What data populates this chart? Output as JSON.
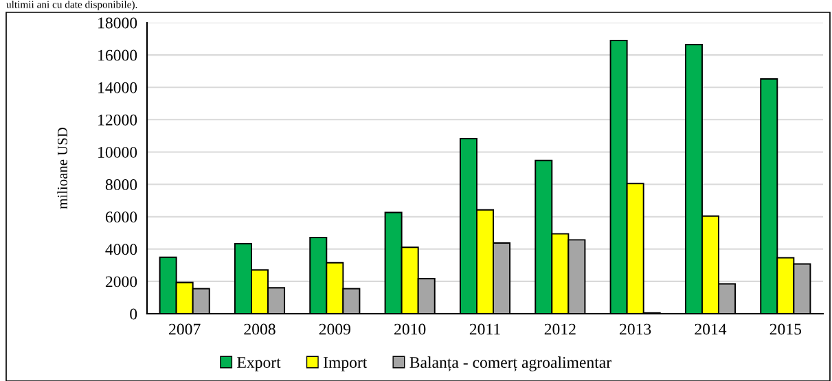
{
  "chart_data": {
    "type": "bar",
    "ylabel": "milioane USD",
    "annotations": [
      "ultimii ani cu date disponibile)."
    ],
    "categories": [
      "2007",
      "2008",
      "2009",
      "2010",
      "2011",
      "2012",
      "2013",
      "2014",
      "2015"
    ],
    "series": [
      {
        "name": "Export",
        "color": "#00b050",
        "values": [
          3490,
          4330,
          4710,
          6260,
          10830,
          9480,
          16900,
          16640,
          14520
        ]
      },
      {
        "name": "Import",
        "color": "#ffff00",
        "values": [
          1930,
          2710,
          3150,
          4110,
          6420,
          4940,
          8050,
          6040,
          3460
        ]
      },
      {
        "name": "Balanța - comerț agroalimentar",
        "color": "#a5a5a5",
        "values": [
          1550,
          1600,
          1550,
          2170,
          4370,
          4570,
          50,
          1850,
          3080
        ]
      }
    ],
    "ylim": [
      0,
      18000
    ],
    "yticks": [
      0,
      2000,
      4000,
      6000,
      8000,
      10000,
      12000,
      14000,
      16000,
      18000
    ],
    "grid": "y",
    "legend": "bottom"
  }
}
